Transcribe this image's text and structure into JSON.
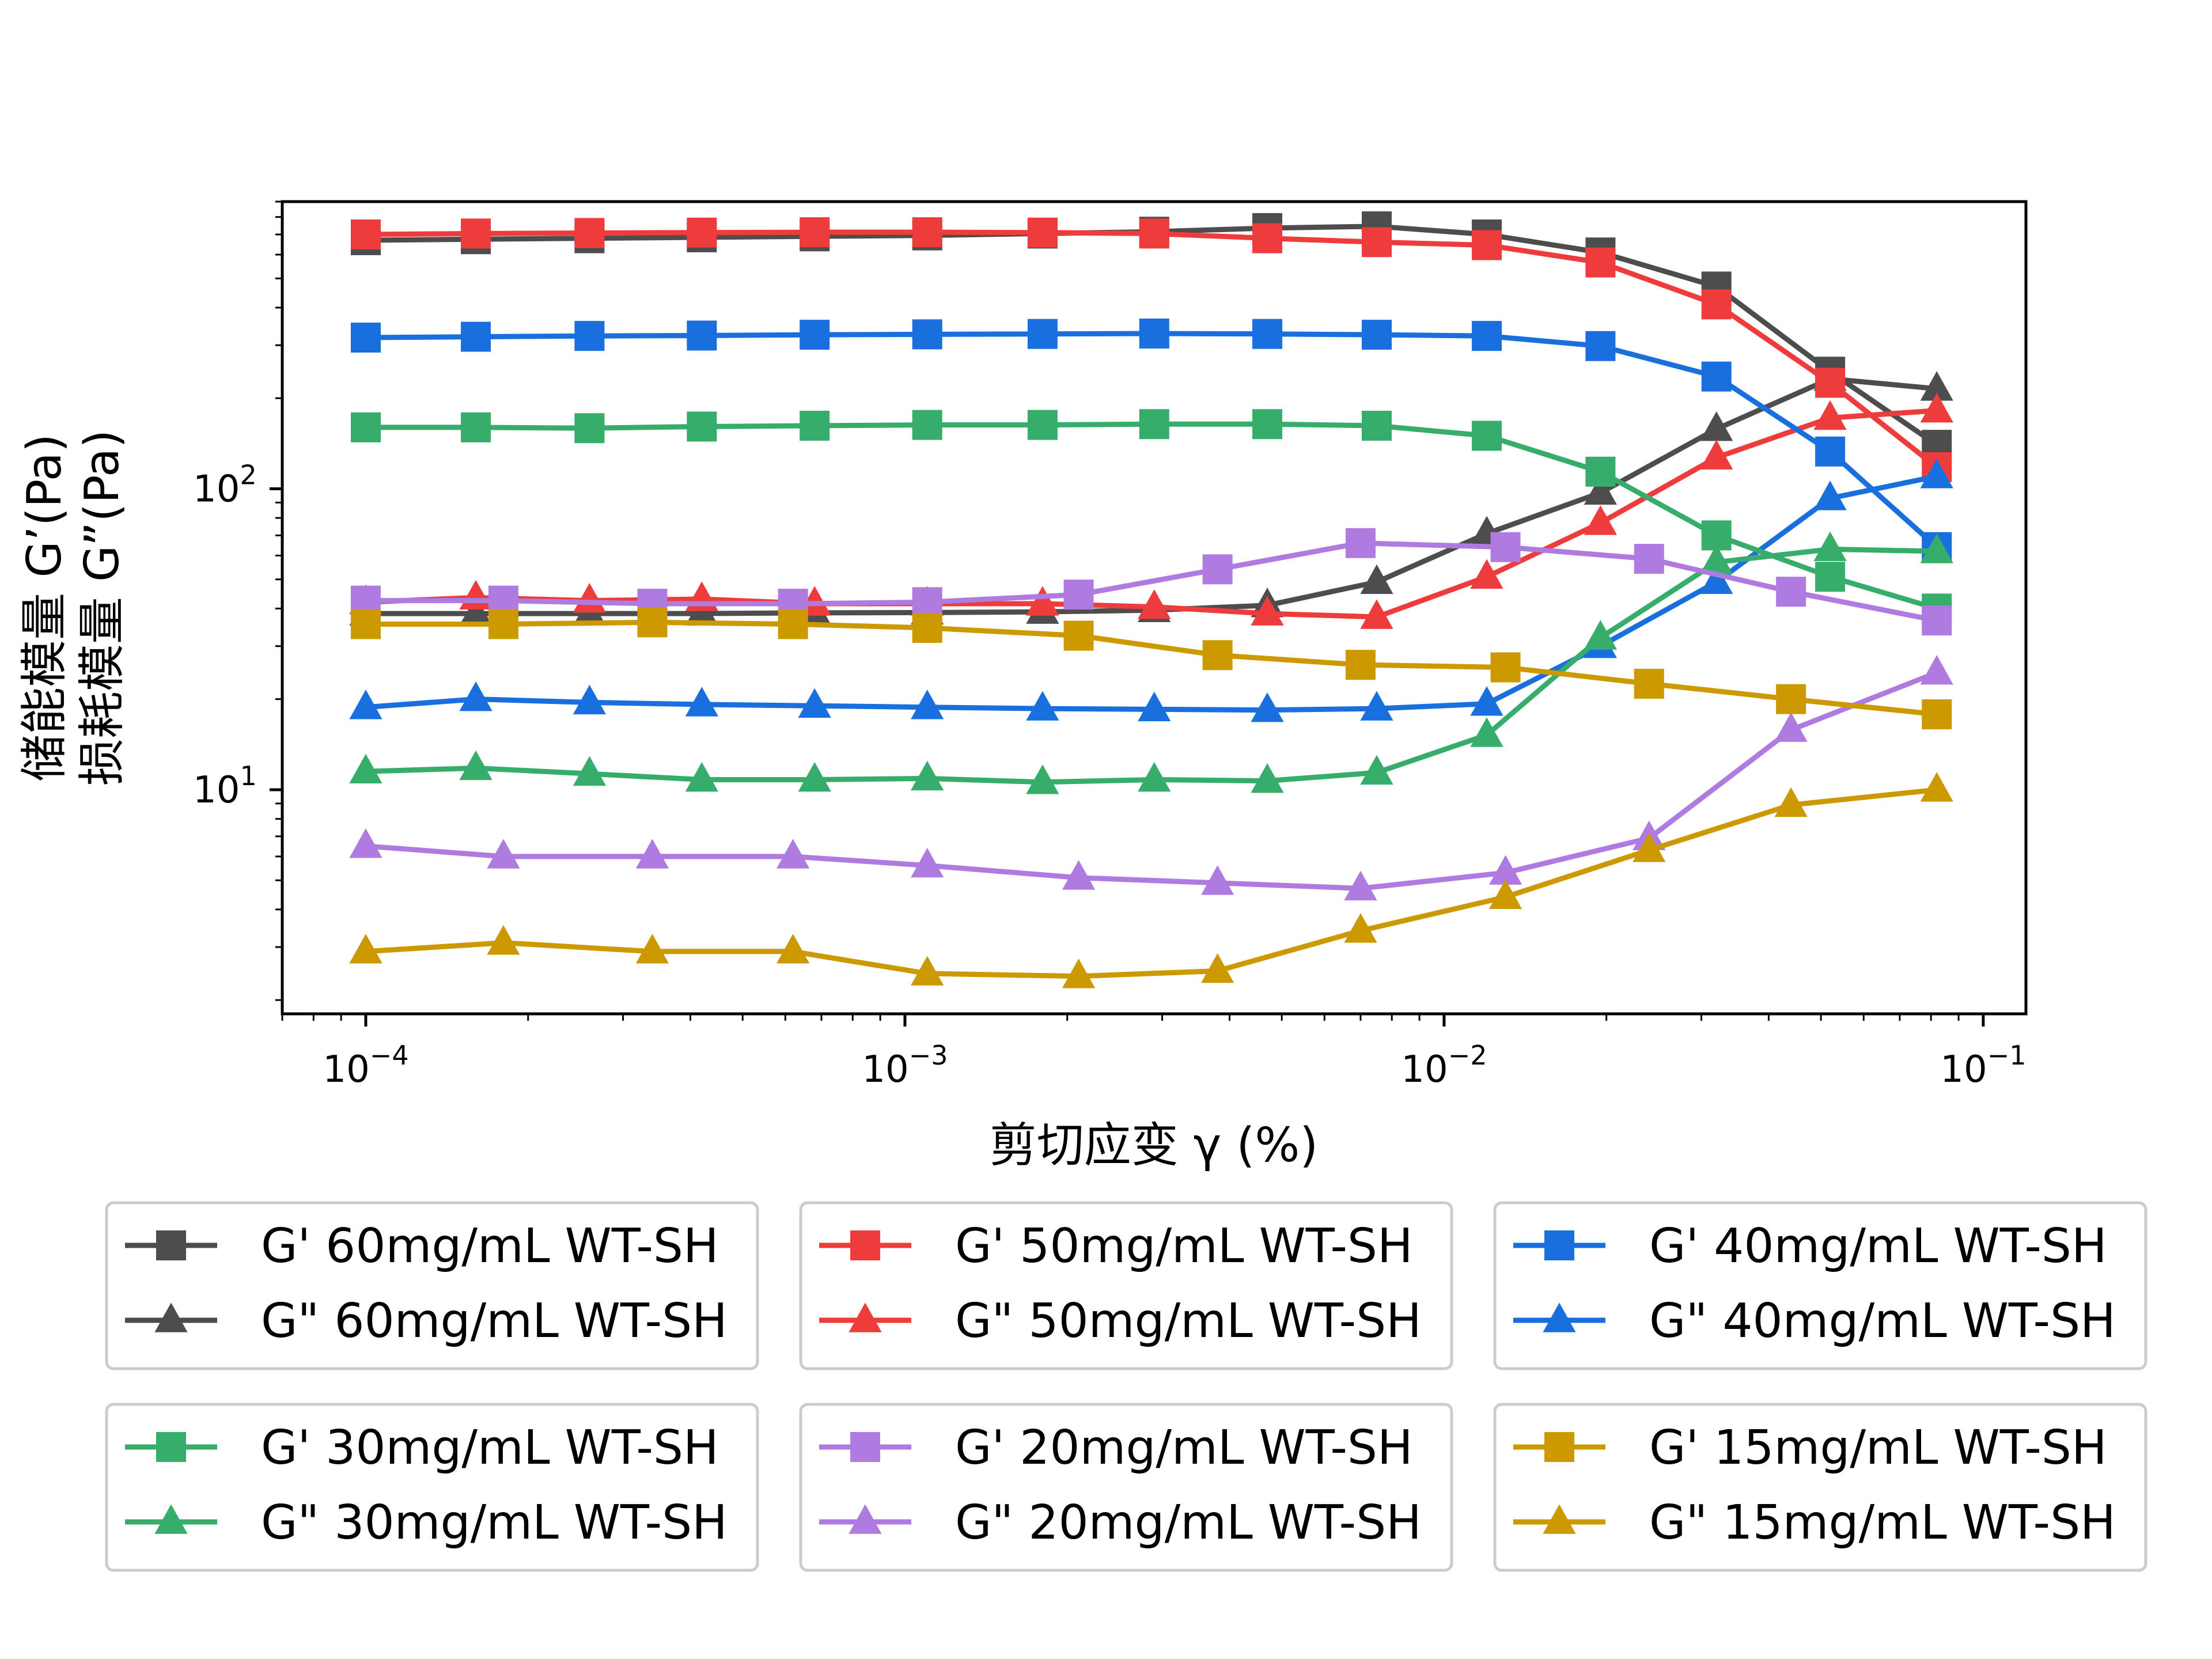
{
  "chart_data": {
    "type": "line",
    "xlabel": "剪切应变  γ (%)",
    "ylabel_lines": [
      "储能模量 G’(Pa)",
      "损耗模量 G”(Pa)"
    ],
    "x_scale": "log",
    "y_scale": "log",
    "xlim": [
      7e-05,
      0.12
    ],
    "ylim": [
      1.8,
      900
    ],
    "x_ticks": [
      {
        "value": 0.0001,
        "base": "10",
        "exp": "−4"
      },
      {
        "value": 0.001,
        "base": "10",
        "exp": "−3"
      },
      {
        "value": 0.01,
        "base": "10",
        "exp": "−2"
      },
      {
        "value": 0.1,
        "base": "10",
        "exp": "−1"
      }
    ],
    "y_ticks": [
      {
        "value": 10,
        "base": "10",
        "exp": "1"
      },
      {
        "value": 100,
        "base": "10",
        "exp": "2"
      }
    ],
    "grid": false,
    "legend_placement": "below",
    "series": [
      {
        "name": "G' 60mg/mL WT-SH",
        "color": "#4d4d4d",
        "marker": "square",
        "x": [
          0.0001,
          0.00016,
          0.00026,
          0.00042,
          0.00068,
          0.0011,
          0.0018,
          0.0029,
          0.0047,
          0.0075,
          0.012,
          0.0195,
          0.032,
          0.052,
          0.082
        ],
        "y": [
          670,
          675,
          680,
          685,
          690,
          695,
          705,
          715,
          735,
          745,
          700,
          610,
          470,
          245,
          140
        ]
      },
      {
        "name": "G\" 60mg/mL WT-SH",
        "color": "#4d4d4d",
        "marker": "triangle",
        "x": [
          0.0001,
          0.00016,
          0.00026,
          0.00042,
          0.00068,
          0.0011,
          0.0018,
          0.0029,
          0.0047,
          0.0075,
          0.012,
          0.0195,
          0.032,
          0.052,
          0.082
        ],
        "y": [
          38.5,
          38.5,
          38.5,
          38.5,
          38.7,
          38.8,
          39,
          39.5,
          41,
          49,
          71,
          97,
          158,
          232,
          215
        ]
      },
      {
        "name": "G' 50mg/mL WT-SH",
        "color": "#ee3b3b",
        "marker": "square",
        "x": [
          0.0001,
          0.00016,
          0.00026,
          0.00042,
          0.00068,
          0.0011,
          0.0018,
          0.0029,
          0.0047,
          0.0075,
          0.012,
          0.0195,
          0.032,
          0.052,
          0.082
        ],
        "y": [
          700,
          705,
          708,
          710,
          712,
          712,
          710,
          705,
          680,
          660,
          645,
          565,
          410,
          225,
          118
        ]
      },
      {
        "name": "G\" 50mg/mL WT-SH",
        "color": "#ee3b3b",
        "marker": "triangle",
        "x": [
          0.0001,
          0.00016,
          0.00026,
          0.00042,
          0.00068,
          0.0011,
          0.0018,
          0.0029,
          0.0047,
          0.0075,
          0.012,
          0.0195,
          0.032,
          0.052,
          0.082
        ],
        "y": [
          42,
          43.5,
          42.5,
          43,
          41.5,
          41.5,
          41.5,
          40.5,
          38.5,
          37.5,
          51,
          77,
          127,
          172,
          182
        ]
      },
      {
        "name": "G' 40mg/mL WT-SH",
        "color": "#1a6fdf",
        "marker": "square",
        "x": [
          0.0001,
          0.00016,
          0.00026,
          0.00042,
          0.00068,
          0.0011,
          0.0018,
          0.0029,
          0.0047,
          0.0075,
          0.012,
          0.0195,
          0.032,
          0.052,
          0.082
        ],
        "y": [
          318,
          320,
          322,
          323,
          325,
          326,
          327,
          328,
          327,
          325,
          322,
          298,
          236,
          133,
          64
        ]
      },
      {
        "name": "G\" 40mg/mL WT-SH",
        "color": "#1a6fdf",
        "marker": "triangle",
        "x": [
          0.0001,
          0.00016,
          0.00026,
          0.00042,
          0.00068,
          0.0011,
          0.0018,
          0.0029,
          0.0047,
          0.0075,
          0.012,
          0.0195,
          0.032,
          0.052,
          0.082
        ],
        "y": [
          18.8,
          20,
          19.5,
          19.2,
          19,
          18.8,
          18.6,
          18.5,
          18.4,
          18.6,
          19.3,
          30,
          49,
          93,
          110
        ]
      },
      {
        "name": "G' 30mg/mL WT-SH",
        "color": "#37ad6b",
        "marker": "square",
        "x": [
          0.0001,
          0.00016,
          0.00026,
          0.00042,
          0.00068,
          0.0011,
          0.0018,
          0.0029,
          0.0047,
          0.0075,
          0.012,
          0.0195,
          0.032,
          0.052,
          0.082
        ],
        "y": [
          160,
          160,
          159,
          161,
          162,
          163,
          163,
          164,
          164,
          162,
          150,
          114,
          70,
          51,
          40
        ]
      },
      {
        "name": "G\" 30mg/mL WT-SH",
        "color": "#37ad6b",
        "marker": "triangle",
        "x": [
          0.0001,
          0.00016,
          0.00026,
          0.00042,
          0.00068,
          0.0011,
          0.0018,
          0.0029,
          0.0047,
          0.0075,
          0.012,
          0.0195,
          0.032,
          0.052,
          0.082
        ],
        "y": [
          11.5,
          11.8,
          11.3,
          10.8,
          10.8,
          10.9,
          10.6,
          10.8,
          10.7,
          11.4,
          15.2,
          32,
          57,
          63,
          62
        ]
      },
      {
        "name": "G' 20mg/mL WT-SH",
        "color": "#b07be0",
        "marker": "square",
        "x": [
          0.0001,
          0.00018,
          0.00034,
          0.00062,
          0.0011,
          0.0021,
          0.0038,
          0.007,
          0.013,
          0.024,
          0.044,
          0.082
        ],
        "y": [
          42.5,
          42.5,
          41.5,
          41.5,
          42,
          44.5,
          54,
          66,
          64,
          58.5,
          45.5,
          36.5
        ]
      },
      {
        "name": "G\" 20mg/mL WT-SH",
        "color": "#b07be0",
        "marker": "triangle",
        "x": [
          0.0001,
          0.00018,
          0.00034,
          0.00062,
          0.0011,
          0.0021,
          0.0038,
          0.007,
          0.013,
          0.024,
          0.044,
          0.082
        ],
        "y": [
          6.5,
          6,
          6,
          6,
          5.6,
          5.1,
          4.9,
          4.7,
          5.3,
          6.9,
          15.8,
          24.5
        ]
      },
      {
        "name": "G' 15mg/mL WT-SH",
        "color": "#cc9900",
        "marker": "square",
        "x": [
          0.0001,
          0.00018,
          0.00034,
          0.00062,
          0.0011,
          0.0021,
          0.0038,
          0.007,
          0.013,
          0.024,
          0.044,
          0.082
        ],
        "y": [
          35.5,
          35.5,
          36,
          35.5,
          34.5,
          32.5,
          28,
          26,
          25.5,
          22.5,
          20,
          17.8
        ]
      },
      {
        "name": "G\" 15mg/mL WT-SH",
        "color": "#cc9900",
        "marker": "triangle",
        "x": [
          0.0001,
          0.00018,
          0.00034,
          0.00062,
          0.0011,
          0.0021,
          0.0038,
          0.007,
          0.013,
          0.024,
          0.044,
          0.082
        ],
        "y": [
          2.9,
          3.1,
          2.9,
          2.9,
          2.45,
          2.4,
          2.5,
          3.4,
          4.4,
          6.3,
          8.9,
          10
        ]
      }
    ]
  }
}
